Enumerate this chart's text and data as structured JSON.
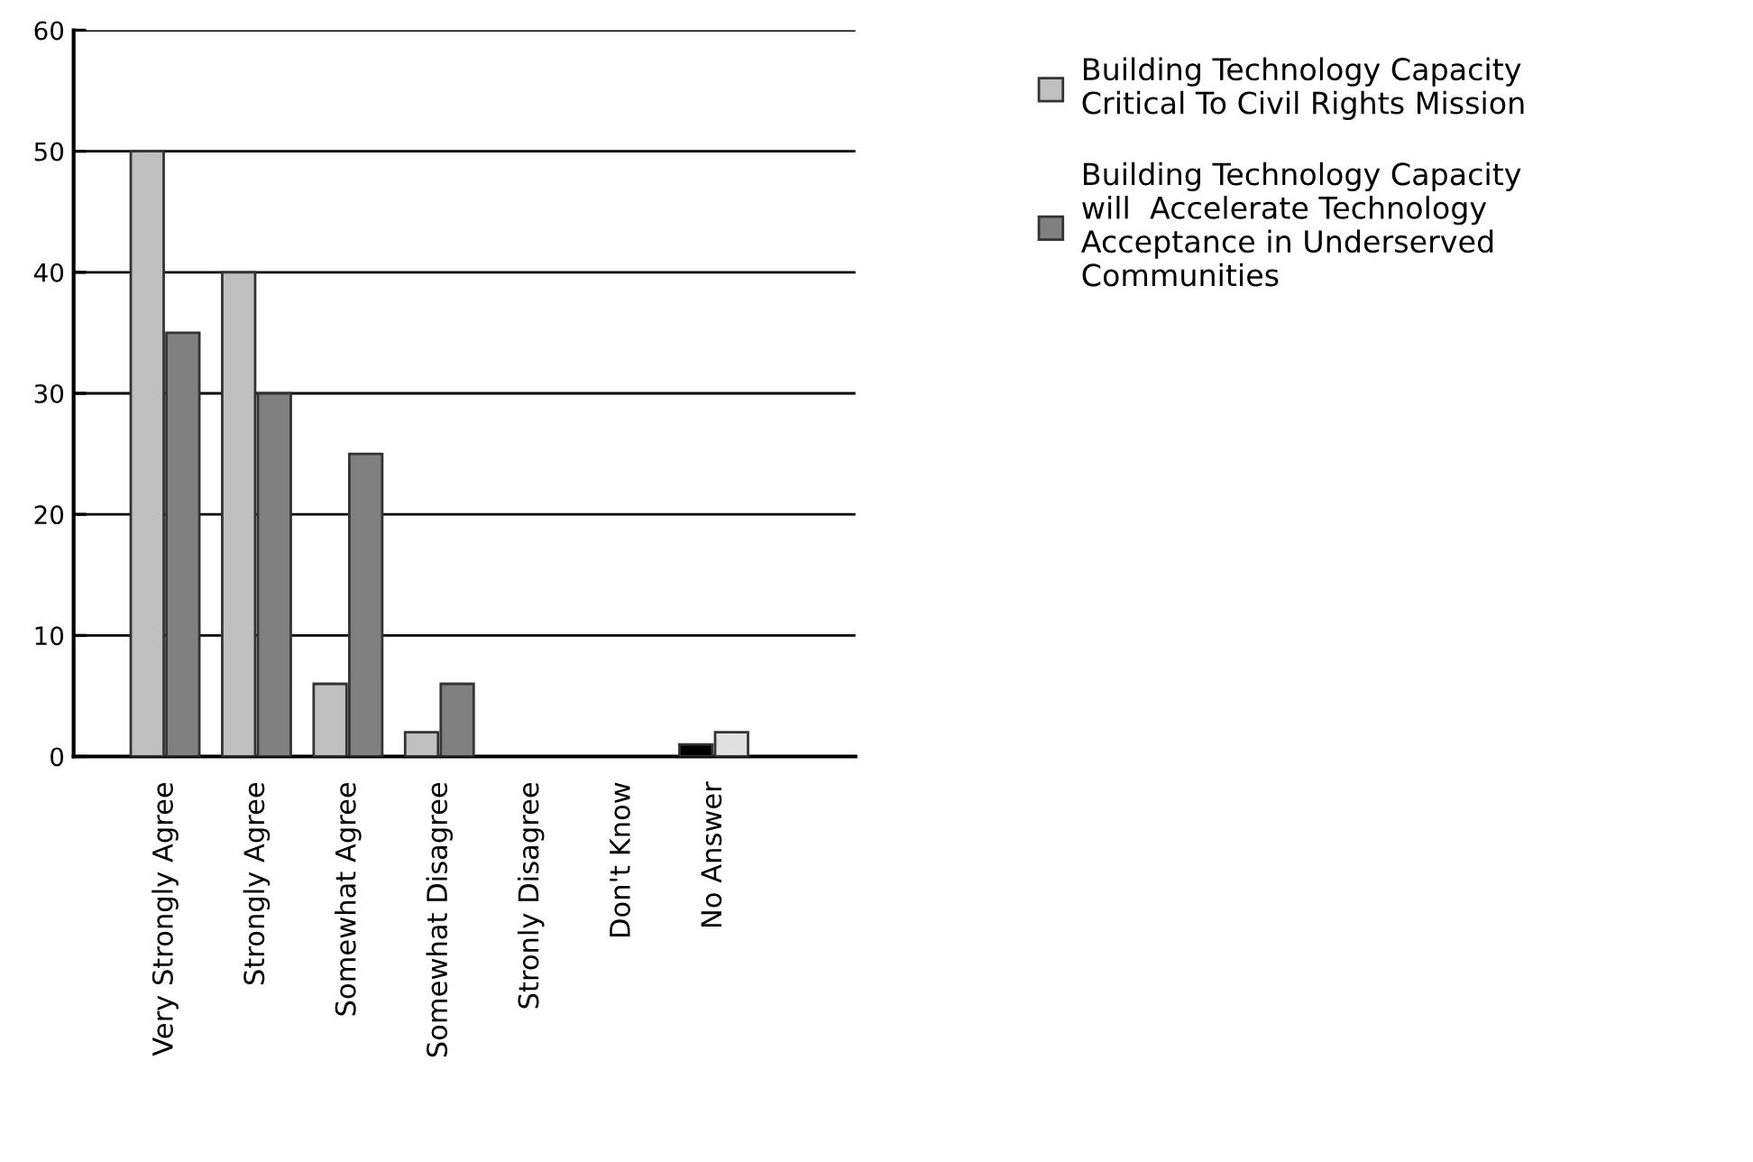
{
  "chart_data": {
    "type": "bar",
    "categories": [
      "Very Strongly Agree",
      "Strongly Agree",
      "Somewhat Agree",
      "Somewhat Disagree",
      "Stronly Disagree",
      "Don't Know",
      "No Answer"
    ],
    "series": [
      {
        "name": "Building Technology Capacity\nCritical To Civil Rights Mission",
        "color": "#c0c0c0",
        "colors": [
          "#c0c0c0",
          "#c0c0c0",
          "#c0c0c0",
          "#c0c0c0",
          "#c0c0c0",
          "#c0c0c0",
          "#000000"
        ],
        "values": [
          50,
          40,
          6,
          2,
          0,
          0,
          1
        ]
      },
      {
        "name": "Building Technology Capacity\nwill  Accelerate Technology\nAcceptance in Underserved\nCommunities",
        "color": "#808080",
        "colors": [
          "#808080",
          "#808080",
          "#808080",
          "#808080",
          "#808080",
          "#808080",
          "#e0e0e0"
        ],
        "values": [
          35,
          30,
          25,
          6,
          0,
          0,
          2
        ]
      }
    ],
    "ylim": [
      0,
      60
    ],
    "yticks": [
      0,
      10,
      20,
      30,
      40,
      50,
      60
    ],
    "grid": "y",
    "legend": "top right"
  }
}
